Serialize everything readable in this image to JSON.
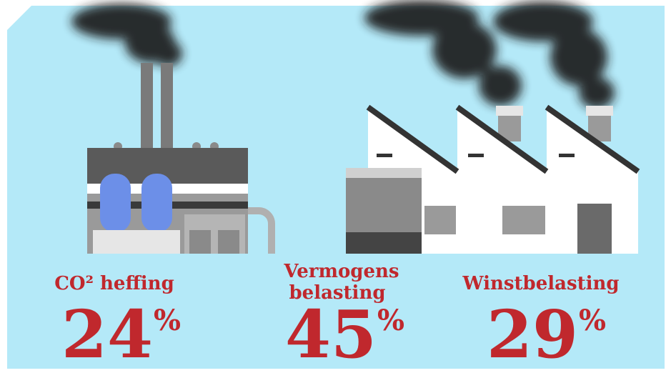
{
  "items": [
    {
      "label_lines": [
        "CO² heffing"
      ],
      "value": "24",
      "unit": "%"
    },
    {
      "label_lines": [
        "Vermogens",
        "belasting"
      ],
      "value": "45",
      "unit": "%"
    },
    {
      "label_lines": [
        "Winstbelasting"
      ],
      "value": "29",
      "unit": "%"
    }
  ]
}
